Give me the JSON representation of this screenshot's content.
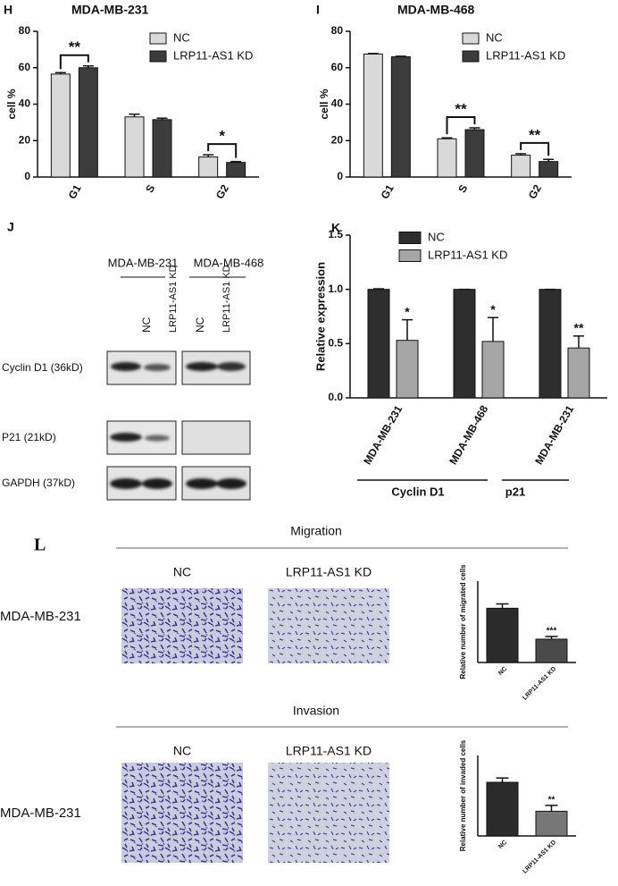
{
  "chart_data": [
    {
      "type": "bar",
      "panel": "H",
      "title": "MDA-MB-231",
      "y_label": "cell %",
      "categories": [
        "G1",
        "S",
        "G2"
      ],
      "series": [
        {
          "name": "NC",
          "color": "#d9d9d9",
          "values": [
            56.5,
            33,
            11
          ],
          "errors": [
            0.8,
            1.5,
            1.2
          ]
        },
        {
          "name": "LRP11-AS1 KD",
          "color": "#3c3c3c",
          "values": [
            60,
            31.5,
            8
          ],
          "errors": [
            1,
            0.8,
            0.5
          ]
        }
      ],
      "annotations": [
        "**",
        null,
        "*"
      ],
      "ylim": [
        0,
        80
      ],
      "yticks": [
        0,
        20,
        40,
        60,
        80
      ]
    },
    {
      "type": "bar",
      "panel": "I",
      "title": "MDA-MB-468",
      "y_label": "cell %",
      "categories": [
        "G1",
        "S",
        "G2"
      ],
      "series": [
        {
          "name": "NC",
          "color": "#d9d9d9",
          "values": [
            67.5,
            21,
            12
          ],
          "errors": [
            0.3,
            0.5,
            0.8
          ]
        },
        {
          "name": "LRP11-AS1 KD",
          "color": "#3c3c3c",
          "values": [
            66,
            26,
            8.5
          ],
          "errors": [
            0.3,
            1,
            1.2
          ]
        }
      ],
      "annotations": [
        null,
        "**",
        "**"
      ],
      "ylim": [
        0,
        80
      ],
      "yticks": [
        0,
        20,
        40,
        60,
        80
      ]
    },
    {
      "type": "bar",
      "panel": "K",
      "y_label": "Relative expression",
      "categories": [
        "MDA-MB-231",
        "MDA-MB-468",
        "MDA-MB-231"
      ],
      "groups": [
        "Cyclin D1",
        "p21"
      ],
      "series": [
        {
          "name": "NC",
          "color": "#2e2e2e",
          "values": [
            1,
            1,
            1
          ],
          "errors": [
            0.005,
            0,
            0
          ]
        },
        {
          "name": "LRP11-AS1 KD",
          "color": "#a6a6a6",
          "values": [
            0.53,
            0.52,
            0.46
          ],
          "errors": [
            0.19,
            0.22,
            0.11
          ]
        }
      ],
      "annotations": [
        "*",
        "*",
        "**"
      ],
      "ylim": [
        0,
        1.5
      ],
      "yticks": [
        {
          "value": 0,
          "label": "0.0"
        },
        0.5,
        {
          "value": 1,
          "label": "1.0"
        },
        1.5
      ]
    },
    {
      "type": "bar",
      "y_label": "Relative number of migrated cells",
      "categories": [
        "NC",
        "LRP11-AS1 KD"
      ],
      "values": [
        1.0,
        0.43
      ],
      "errors": [
        0.08,
        0.05
      ],
      "colors": [
        "#2b2b2b",
        "#4a4a4a"
      ],
      "annotations": [
        null,
        "***"
      ],
      "ylim": [
        0,
        1.5
      ]
    },
    {
      "type": "bar",
      "y_label": "Relative number of invaded cells",
      "categories": [
        "NC",
        "LRP11-AS1 KD"
      ],
      "values": [
        1.0,
        0.46
      ],
      "errors": [
        0.08,
        0.11
      ],
      "colors": [
        "#2b2b2b",
        "#777777"
      ],
      "annotations": [
        null,
        "**"
      ],
      "ylim": [
        0,
        1.5
      ]
    }
  ],
  "blot": {
    "panel": "J",
    "cell_lines": [
      "MDA-MB-231",
      "MDA-MB-468"
    ],
    "lanes": [
      "NC",
      "LRP11-AS1 KD"
    ],
    "proteins": [
      "Cyclin D1 (36kD)",
      "P21 (21kD)",
      "GAPDH (37kD)"
    ]
  },
  "assay": {
    "panel": "L",
    "sections": [
      "Migration",
      "Invasion"
    ],
    "columns": [
      "NC",
      "LRP11-AS1 KD"
    ],
    "row_label": "MDA-MB-231"
  }
}
